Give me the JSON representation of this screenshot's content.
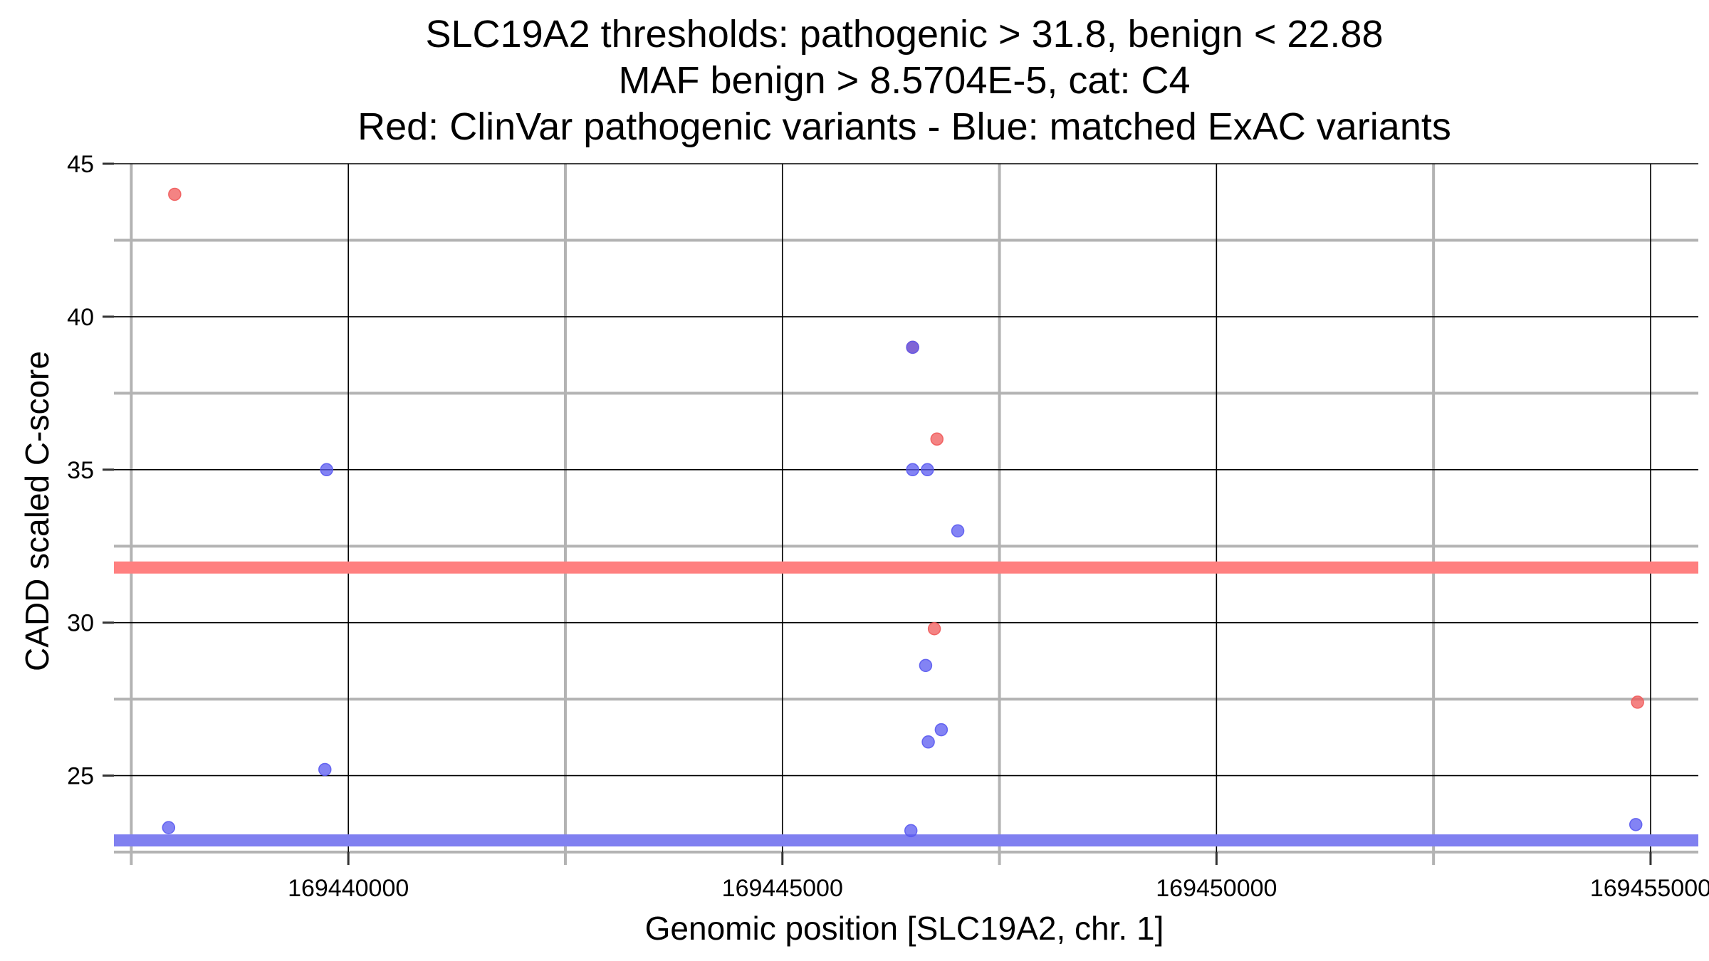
{
  "chart_data": {
    "type": "scatter",
    "title_lines": [
      "SLC19A2 thresholds: pathogenic > 31.8, benign < 22.88",
      "MAF benign > 8.5704E-5, cat: C4",
      "Red: ClinVar pathogenic variants - Blue: matched ExAC variants"
    ],
    "xlabel": "Genomic position [SLC19A2, chr. 1]",
    "ylabel": "CADD scaled C-score",
    "xlim": [
      169437300,
      169455550
    ],
    "ylim": [
      22.5,
      45
    ],
    "x_ticks": [
      169440000,
      169445000,
      169450000,
      169455000
    ],
    "x_tick_labels": [
      "169440000",
      "169445000",
      "169450000",
      "169455000"
    ],
    "x_minor_ticks": [
      169437500,
      169442500,
      169447500,
      169452500
    ],
    "y_ticks": [
      25,
      30,
      35,
      40,
      45
    ],
    "y_tick_labels": [
      "25",
      "30",
      "35",
      "40",
      "45"
    ],
    "y_minor_ticks": [
      22.5,
      27.5,
      32.5,
      37.5,
      42.5
    ],
    "thresholds": [
      {
        "name": "pathogenic",
        "value": 31.8,
        "color": "#ff8080"
      },
      {
        "name": "benign",
        "value": 22.88,
        "color": "#8080f0"
      }
    ],
    "series": [
      {
        "name": "ClinVar pathogenic variants",
        "color": "#f05a5a",
        "points": [
          {
            "x": 169438000,
            "y": 44
          },
          {
            "x": 169446500,
            "y": 39
          },
          {
            "x": 169446780,
            "y": 36
          },
          {
            "x": 169446750,
            "y": 29.8
          },
          {
            "x": 169454850,
            "y": 27.4
          }
        ]
      },
      {
        "name": "matched ExAC variants",
        "color": "#5a5af0",
        "points": [
          {
            "x": 169439750,
            "y": 35
          },
          {
            "x": 169439730,
            "y": 25.2
          },
          {
            "x": 169437930,
            "y": 23.3
          },
          {
            "x": 169446500,
            "y": 39
          },
          {
            "x": 169446500,
            "y": 35
          },
          {
            "x": 169446670,
            "y": 35
          },
          {
            "x": 169447020,
            "y": 33
          },
          {
            "x": 169446650,
            "y": 28.6
          },
          {
            "x": 169446830,
            "y": 26.5
          },
          {
            "x": 169446680,
            "y": 26.1
          },
          {
            "x": 169446480,
            "y": 23.2
          },
          {
            "x": 169454830,
            "y": 23.4
          }
        ]
      }
    ]
  }
}
